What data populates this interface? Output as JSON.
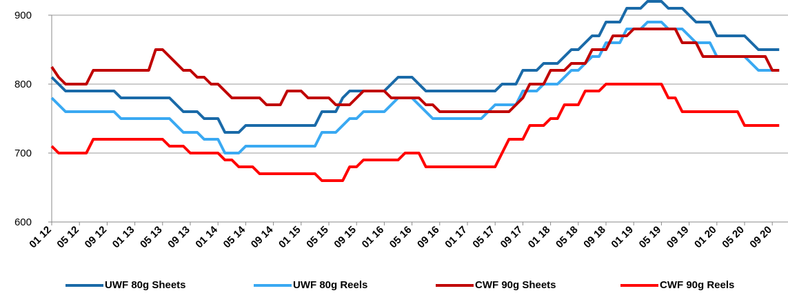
{
  "chart_data": {
    "type": "line",
    "categories": [
      "01 12",
      null,
      null,
      null,
      "05 12",
      null,
      null,
      null,
      "09 12",
      null,
      null,
      null,
      "01 13",
      null,
      null,
      null,
      "05 13",
      null,
      null,
      null,
      "09 13",
      null,
      null,
      null,
      "01 14",
      null,
      null,
      null,
      "05 14",
      null,
      null,
      null,
      "09 14",
      null,
      null,
      null,
      "01 15",
      null,
      null,
      null,
      "05 15",
      null,
      null,
      null,
      "09 15",
      null,
      null,
      null,
      "01 16",
      null,
      null,
      null,
      "05 16",
      null,
      null,
      null,
      "09 16",
      null,
      null,
      null,
      "01 17",
      null,
      null,
      null,
      "05 17",
      null,
      null,
      null,
      "09 17",
      null,
      null,
      null,
      "01 18",
      null,
      null,
      null,
      "05 18",
      null,
      null,
      null,
      "09 18",
      null,
      null,
      null,
      "01 19",
      null,
      null,
      null,
      "05 19",
      null,
      null,
      null,
      "09 19",
      null,
      null,
      null,
      "01 20",
      null,
      null,
      null,
      "05 20",
      null,
      null,
      null,
      "09 20",
      null
    ],
    "series": [
      {
        "name": "UWF 80g Sheets",
        "color": "#1a6aa8",
        "values": [
          810,
          800,
          790,
          790,
          790,
          790,
          790,
          790,
          790,
          790,
          780,
          780,
          780,
          780,
          780,
          780,
          780,
          780,
          770,
          760,
          760,
          760,
          750,
          750,
          750,
          730,
          730,
          730,
          740,
          740,
          740,
          740,
          740,
          740,
          740,
          740,
          740,
          740,
          740,
          760,
          760,
          760,
          780,
          790,
          790,
          790,
          790,
          790,
          790,
          800,
          810,
          810,
          810,
          800,
          790,
          790,
          790,
          790,
          790,
          790,
          790,
          790,
          790,
          790,
          790,
          800,
          800,
          800,
          820,
          820,
          820,
          830,
          830,
          830,
          840,
          850,
          850,
          860,
          870,
          870,
          890,
          890,
          890,
          910,
          910,
          910,
          920,
          920,
          920,
          910,
          910,
          910,
          900,
          890,
          890,
          890,
          870,
          870,
          870,
          870,
          870,
          860,
          850,
          850,
          850,
          850
        ]
      },
      {
        "name": "UWF 80g Reels",
        "color": "#3aa9f2",
        "values": [
          780,
          770,
          760,
          760,
          760,
          760,
          760,
          760,
          760,
          760,
          750,
          750,
          750,
          750,
          750,
          750,
          750,
          750,
          740,
          730,
          730,
          730,
          720,
          720,
          720,
          700,
          700,
          700,
          710,
          710,
          710,
          710,
          710,
          710,
          710,
          710,
          710,
          710,
          710,
          730,
          730,
          730,
          740,
          750,
          750,
          760,
          760,
          760,
          760,
          770,
          780,
          780,
          780,
          770,
          760,
          750,
          750,
          750,
          750,
          750,
          750,
          750,
          750,
          760,
          770,
          770,
          770,
          770,
          790,
          790,
          790,
          800,
          800,
          800,
          810,
          820,
          820,
          830,
          840,
          840,
          860,
          860,
          860,
          880,
          880,
          880,
          890,
          890,
          890,
          880,
          880,
          880,
          870,
          860,
          860,
          860,
          840,
          840,
          840,
          840,
          840,
          830,
          820,
          820,
          820,
          820
        ]
      },
      {
        "name": "CWF 90g Sheets",
        "color": "#c00000",
        "values": [
          825,
          810,
          800,
          800,
          800,
          800,
          820,
          820,
          820,
          820,
          820,
          820,
          820,
          820,
          820,
          850,
          850,
          840,
          830,
          820,
          820,
          810,
          810,
          800,
          800,
          790,
          780,
          780,
          780,
          780,
          780,
          770,
          770,
          770,
          790,
          790,
          790,
          780,
          780,
          780,
          780,
          770,
          770,
          770,
          780,
          790,
          790,
          790,
          790,
          780,
          780,
          780,
          780,
          780,
          770,
          770,
          760,
          760,
          760,
          760,
          760,
          760,
          760,
          760,
          760,
          760,
          760,
          770,
          780,
          800,
          800,
          800,
          820,
          820,
          820,
          830,
          830,
          830,
          850,
          850,
          850,
          870,
          870,
          870,
          880,
          880,
          880,
          880,
          880,
          880,
          880,
          860,
          860,
          860,
          840,
          840,
          840,
          840,
          840,
          840,
          840,
          840,
          840,
          840,
          820,
          820
        ]
      },
      {
        "name": "CWF 90g Reels",
        "color": "#ff0000",
        "values": [
          710,
          700,
          700,
          700,
          700,
          700,
          720,
          720,
          720,
          720,
          720,
          720,
          720,
          720,
          720,
          720,
          720,
          710,
          710,
          710,
          700,
          700,
          700,
          700,
          700,
          690,
          690,
          680,
          680,
          680,
          670,
          670,
          670,
          670,
          670,
          670,
          670,
          670,
          670,
          660,
          660,
          660,
          660,
          680,
          680,
          690,
          690,
          690,
          690,
          690,
          690,
          700,
          700,
          700,
          680,
          680,
          680,
          680,
          680,
          680,
          680,
          680,
          680,
          680,
          680,
          700,
          720,
          720,
          720,
          740,
          740,
          740,
          750,
          750,
          770,
          770,
          770,
          790,
          790,
          790,
          800,
          800,
          800,
          800,
          800,
          800,
          800,
          800,
          800,
          780,
          780,
          760,
          760,
          760,
          760,
          760,
          760,
          760,
          760,
          760,
          740,
          740,
          740,
          740,
          740,
          740
        ]
      }
    ],
    "ylim": [
      600,
      920
    ],
    "yticks": [
      600,
      700,
      800,
      900
    ],
    "grid": true,
    "legend": "bottom"
  }
}
